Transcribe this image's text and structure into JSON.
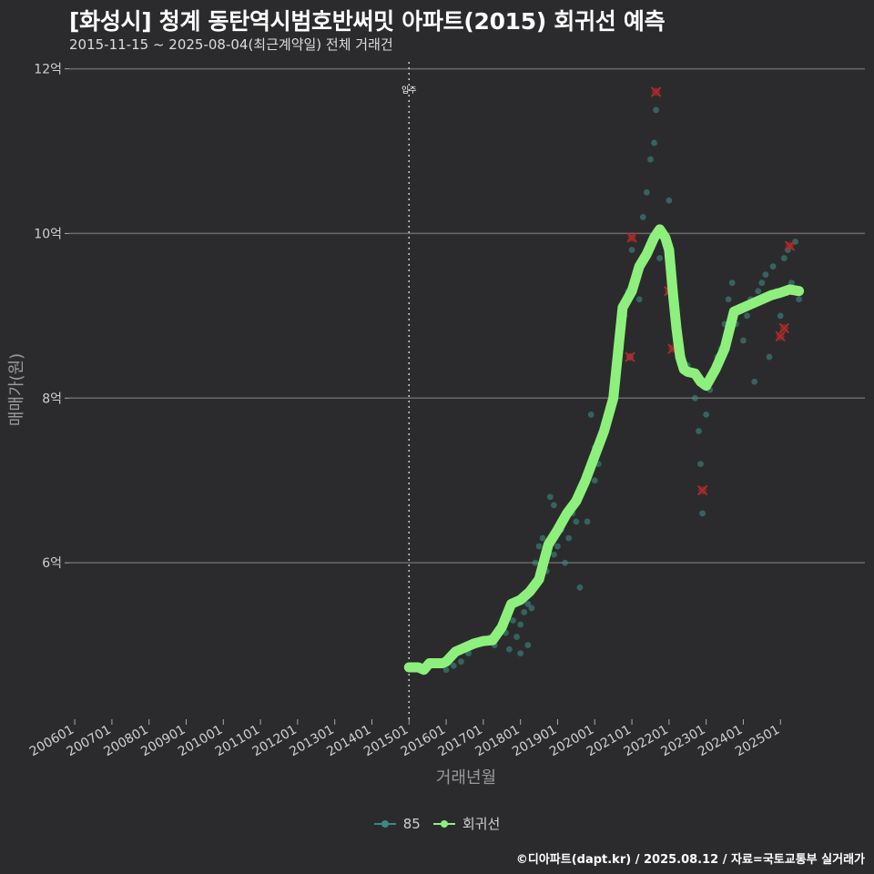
{
  "title": "[화성시] 청계 동탄역시범호반써밋 아파트(2015) 회귀선 예측",
  "subtitle": "2015-11-15 ~ 2025-08-04(최근계약일) 전체 거래건",
  "caption": "©디아파트(dapt.kr) / 2025.08.12 / 자료=국토교통부 실거래가",
  "colors": {
    "background": "#2b2b2d",
    "grid": "#6a6a6a",
    "points": "#3a8a82",
    "regression": "#8ef07c",
    "outliers": "#b02a2a",
    "marker_line": "#cfcfcf"
  },
  "legend": [
    {
      "label": "85",
      "color": "#3a8a82",
      "kind": "points"
    },
    {
      "label": "회귀선",
      "color": "#8ef07c",
      "kind": "line"
    }
  ],
  "chart_data": {
    "type": "scatter",
    "xlabel": "거래년월",
    "ylabel": "매매가(원)",
    "xlim": [
      2005.85,
      2025.95
    ],
    "ylim": [
      4.1,
      12.15
    ],
    "y_ticks": [
      {
        "value": 6,
        "label": "6억"
      },
      {
        "value": 8,
        "label": "8억"
      },
      {
        "value": 10,
        "label": "10억"
      },
      {
        "value": 12,
        "label": "12억"
      }
    ],
    "x_ticks": [
      {
        "value": 2006.0,
        "label": "200601"
      },
      {
        "value": 2007.0,
        "label": "200701"
      },
      {
        "value": 2008.0,
        "label": "200801"
      },
      {
        "value": 2009.0,
        "label": "200901"
      },
      {
        "value": 2010.0,
        "label": "201001"
      },
      {
        "value": 2011.0,
        "label": "201101"
      },
      {
        "value": 2012.0,
        "label": "201201"
      },
      {
        "value": 2013.0,
        "label": "201301"
      },
      {
        "value": 2014.0,
        "label": "201401"
      },
      {
        "value": 2015.0,
        "label": "201501"
      },
      {
        "value": 2016.0,
        "label": "201601"
      },
      {
        "value": 2017.0,
        "label": "201701"
      },
      {
        "value": 2018.0,
        "label": "201801"
      },
      {
        "value": 2019.0,
        "label": "201901"
      },
      {
        "value": 2020.0,
        "label": "202001"
      },
      {
        "value": 2021.0,
        "label": "202101"
      },
      {
        "value": 2022.0,
        "label": "202201"
      },
      {
        "value": 2023.0,
        "label": "202301"
      },
      {
        "value": 2024.0,
        "label": "202401"
      },
      {
        "value": 2025.0,
        "label": "202501"
      }
    ],
    "annotations": [
      {
        "x": 2015.0,
        "label": "입주"
      }
    ],
    "series": [
      {
        "name": "85",
        "points": [
          [
            2016.0,
            4.7
          ],
          [
            2016.2,
            4.75
          ],
          [
            2016.4,
            4.8
          ],
          [
            2016.6,
            4.9
          ],
          [
            2016.8,
            5.0
          ],
          [
            2017.0,
            5.05
          ],
          [
            2017.2,
            5.1
          ],
          [
            2017.3,
            5.0
          ],
          [
            2017.5,
            5.2
          ],
          [
            2017.6,
            5.15
          ],
          [
            2017.7,
            4.95
          ],
          [
            2017.8,
            5.3
          ],
          [
            2017.9,
            5.1
          ],
          [
            2018.0,
            5.25
          ],
          [
            2018.0,
            4.9
          ],
          [
            2018.1,
            5.4
          ],
          [
            2018.1,
            5.6
          ],
          [
            2018.2,
            5.0
          ],
          [
            2018.2,
            5.5
          ],
          [
            2018.3,
            5.45
          ],
          [
            2018.4,
            6.0
          ],
          [
            2018.5,
            5.8
          ],
          [
            2018.5,
            6.2
          ],
          [
            2018.6,
            6.3
          ],
          [
            2018.7,
            5.9
          ],
          [
            2018.8,
            6.8
          ],
          [
            2018.9,
            6.1
          ],
          [
            2018.9,
            6.7
          ],
          [
            2019.0,
            6.2
          ],
          [
            2019.1,
            6.4
          ],
          [
            2019.2,
            6.0
          ],
          [
            2019.3,
            6.3
          ],
          [
            2019.4,
            6.6
          ],
          [
            2019.5,
            6.5
          ],
          [
            2019.6,
            5.7
          ],
          [
            2019.6,
            6.8
          ],
          [
            2019.7,
            6.9
          ],
          [
            2019.8,
            6.5
          ],
          [
            2019.9,
            7.8
          ],
          [
            2020.0,
            7.0
          ],
          [
            2020.0,
            7.4
          ],
          [
            2020.1,
            7.2
          ],
          [
            2020.2,
            7.5
          ],
          [
            2020.3,
            7.6
          ],
          [
            2020.4,
            7.9
          ],
          [
            2020.5,
            8.0
          ],
          [
            2020.6,
            8.3
          ],
          [
            2020.7,
            8.6
          ],
          [
            2020.8,
            9.0
          ],
          [
            2020.9,
            9.3
          ],
          [
            2020.95,
            8.5
          ],
          [
            2021.0,
            9.8
          ],
          [
            2021.1,
            9.5
          ],
          [
            2021.2,
            9.2
          ],
          [
            2021.3,
            10.2
          ],
          [
            2021.4,
            10.5
          ],
          [
            2021.5,
            10.9
          ],
          [
            2021.6,
            11.1
          ],
          [
            2021.65,
            11.5
          ],
          [
            2021.7,
            10.0
          ],
          [
            2021.75,
            9.7
          ],
          [
            2021.8,
            10.0
          ],
          [
            2022.0,
            10.4
          ],
          [
            2022.1,
            9.6
          ],
          [
            2022.2,
            9.0
          ],
          [
            2022.3,
            8.6
          ],
          [
            2022.4,
            8.4
          ],
          [
            2022.5,
            8.4
          ],
          [
            2022.6,
            8.3
          ],
          [
            2022.7,
            8.0
          ],
          [
            2022.8,
            7.6
          ],
          [
            2022.85,
            7.2
          ],
          [
            2022.9,
            6.6
          ],
          [
            2022.95,
            8.2
          ],
          [
            2023.0,
            7.8
          ],
          [
            2023.1,
            8.1
          ],
          [
            2023.2,
            8.3
          ],
          [
            2023.3,
            8.5
          ],
          [
            2023.4,
            8.6
          ],
          [
            2023.5,
            8.9
          ],
          [
            2023.6,
            9.2
          ],
          [
            2023.7,
            9.4
          ],
          [
            2023.8,
            8.9
          ],
          [
            2023.9,
            9.1
          ],
          [
            2024.0,
            8.7
          ],
          [
            2024.1,
            9.0
          ],
          [
            2024.2,
            9.2
          ],
          [
            2024.3,
            8.2
          ],
          [
            2024.4,
            9.3
          ],
          [
            2024.5,
            9.4
          ],
          [
            2024.6,
            9.5
          ],
          [
            2024.7,
            8.5
          ],
          [
            2024.8,
            9.6
          ],
          [
            2024.9,
            9.3
          ],
          [
            2025.0,
            9.0
          ],
          [
            2025.1,
            9.7
          ],
          [
            2025.2,
            9.8
          ],
          [
            2025.3,
            9.4
          ],
          [
            2025.4,
            9.9
          ],
          [
            2025.5,
            9.2
          ]
        ]
      },
      {
        "name": "회귀선",
        "points": [
          [
            2015.0,
            4.73
          ],
          [
            2015.25,
            4.73
          ],
          [
            2015.4,
            4.7
          ],
          [
            2015.55,
            4.78
          ],
          [
            2015.9,
            4.78
          ],
          [
            2016.0,
            4.8
          ],
          [
            2016.25,
            4.92
          ],
          [
            2016.5,
            4.97
          ],
          [
            2016.75,
            5.02
          ],
          [
            2017.0,
            5.05
          ],
          [
            2017.25,
            5.06
          ],
          [
            2017.5,
            5.22
          ],
          [
            2017.75,
            5.5
          ],
          [
            2018.0,
            5.55
          ],
          [
            2018.25,
            5.65
          ],
          [
            2018.5,
            5.8
          ],
          [
            2018.75,
            6.22
          ],
          [
            2019.0,
            6.4
          ],
          [
            2019.25,
            6.6
          ],
          [
            2019.5,
            6.75
          ],
          [
            2019.75,
            7.0
          ],
          [
            2020.0,
            7.3
          ],
          [
            2020.25,
            7.6
          ],
          [
            2020.5,
            8.0
          ],
          [
            2020.75,
            9.1
          ],
          [
            2021.0,
            9.3
          ],
          [
            2021.2,
            9.6
          ],
          [
            2021.4,
            9.75
          ],
          [
            2021.6,
            9.95
          ],
          [
            2021.75,
            10.05
          ],
          [
            2021.9,
            9.95
          ],
          [
            2022.0,
            9.8
          ],
          [
            2022.1,
            9.3
          ],
          [
            2022.2,
            8.85
          ],
          [
            2022.3,
            8.5
          ],
          [
            2022.4,
            8.35
          ],
          [
            2022.5,
            8.32
          ],
          [
            2022.7,
            8.3
          ],
          [
            2022.85,
            8.2
          ],
          [
            2023.0,
            8.15
          ],
          [
            2023.25,
            8.35
          ],
          [
            2023.5,
            8.6
          ],
          [
            2023.75,
            9.05
          ],
          [
            2024.0,
            9.1
          ],
          [
            2024.25,
            9.15
          ],
          [
            2024.5,
            9.2
          ],
          [
            2024.75,
            9.25
          ],
          [
            2025.0,
            9.28
          ],
          [
            2025.25,
            9.32
          ],
          [
            2025.5,
            9.3
          ]
        ]
      }
    ],
    "outliers": [
      [
        2021.65,
        11.72
      ],
      [
        2021.7,
        10.0
      ],
      [
        2020.95,
        8.5
      ],
      [
        2021.0,
        9.95
      ],
      [
        2022.0,
        9.3
      ],
      [
        2022.1,
        8.6
      ],
      [
        2022.9,
        6.88
      ],
      [
        2025.0,
        8.75
      ],
      [
        2025.1,
        8.85
      ],
      [
        2025.25,
        9.85
      ],
      [
        2025.3,
        9.3
      ]
    ]
  }
}
